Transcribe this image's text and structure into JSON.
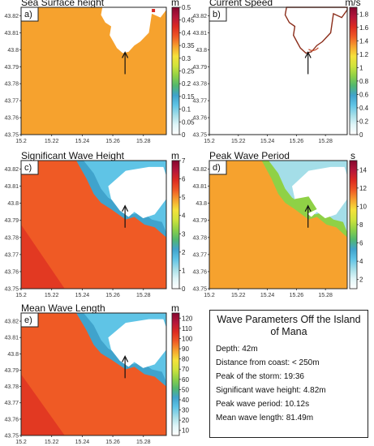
{
  "chart_data": [
    {
      "type": "heatmap",
      "title": "Sea Surface height",
      "panel_label": "a)",
      "unit": "m",
      "colorbar_ticks": [
        "0",
        "0.05",
        "0.1",
        "0.15",
        "0.2",
        "0.25",
        "0.3",
        "0.35",
        "0.4",
        "0.45",
        "0.5"
      ],
      "colorbar_range": [
        0,
        0.5
      ],
      "y_ticks": [
        "43.75",
        "43.76",
        "43.77",
        "43.78",
        "43.79",
        "43.8",
        "43.81",
        "43.82"
      ],
      "x_ticks": [
        "15.2",
        "15.22",
        "15.24",
        "15.26",
        "15.28"
      ],
      "ylim": [
        43.75,
        43.825
      ],
      "xlim": [
        15.2,
        15.295
      ],
      "arrow_target": [
        15.268,
        43.799
      ],
      "dominant_value": 0.33,
      "colors": [
        "#ffffff",
        "#e0f6f8",
        "#a4dee8",
        "#5fc4e6",
        "#40a3cc",
        "#52b86e",
        "#8fd146",
        "#cfe33b",
        "#f5e23a",
        "#f6a22e",
        "#ef5a25",
        "#dd2b21",
        "#b5163a",
        "#85072e"
      ]
    },
    {
      "type": "heatmap",
      "title": "Current Speed",
      "panel_label": "b)",
      "unit": "m/s",
      "colorbar_ticks": [
        "0",
        "0.2",
        "0.4",
        "0.6",
        "0.8",
        "1",
        "1.2",
        "1.4",
        "1.6",
        "1.8"
      ],
      "colorbar_range": [
        0,
        1.9
      ],
      "y_ticks": [
        "43.75",
        "43.76",
        "43.77",
        "43.78",
        "43.79",
        "43.8",
        "43.81",
        "43.82"
      ],
      "x_ticks": [
        "15.2",
        "15.22",
        "15.24",
        "15.26",
        "15.28"
      ],
      "ylim": [
        43.75,
        43.825
      ],
      "xlim": [
        15.2,
        15.295
      ],
      "arrow_target": [
        15.268,
        43.799
      ],
      "dominant_value": 0.1,
      "colors": [
        "#ffffff",
        "#e0f6f8",
        "#a4dee8",
        "#5fc4e6",
        "#40a3cc",
        "#52b86e",
        "#8fd146",
        "#cfe33b",
        "#f5e23a",
        "#f6a22e",
        "#ef5a25",
        "#dd2b21",
        "#b5163a",
        "#85072e"
      ]
    },
    {
      "type": "heatmap",
      "title": "Significant Wave Height",
      "panel_label": "c)",
      "unit": "m",
      "colorbar_ticks": [
        "0",
        "1",
        "2",
        "3",
        "4",
        "5",
        "6",
        "7"
      ],
      "colorbar_range": [
        0,
        7
      ],
      "y_ticks": [
        "43.75",
        "43.76",
        "43.77",
        "43.78",
        "43.79",
        "43.8",
        "43.81",
        "43.82"
      ],
      "x_ticks": [
        "15.2",
        "15.22",
        "15.24",
        "15.26",
        "15.28"
      ],
      "ylim": [
        43.75,
        43.825
      ],
      "xlim": [
        15.2,
        15.295
      ],
      "arrow_target": [
        15.268,
        43.799
      ],
      "dominant_value": 5.2,
      "colors": [
        "#ffffff",
        "#e0f6f8",
        "#a4dee8",
        "#5fc4e6",
        "#40a3cc",
        "#52b86e",
        "#8fd146",
        "#cfe33b",
        "#f5e23a",
        "#f6a22e",
        "#ef5a25",
        "#dd2b21",
        "#b5163a",
        "#85072e"
      ]
    },
    {
      "type": "heatmap",
      "title": "Peak Wave Period",
      "panel_label": "d)",
      "unit": "s",
      "colorbar_ticks": [
        "2",
        "4",
        "6",
        "8",
        "10",
        "12",
        "14"
      ],
      "colorbar_range": [
        1,
        15
      ],
      "y_ticks": [
        "43.75",
        "43.76",
        "43.77",
        "43.78",
        "43.79",
        "43.8",
        "43.81",
        "43.82"
      ],
      "x_ticks": [
        "15.2",
        "15.22",
        "15.24",
        "15.26",
        "15.28"
      ],
      "ylim": [
        43.75,
        43.825
      ],
      "xlim": [
        15.2,
        15.295
      ],
      "arrow_target": [
        15.268,
        43.799
      ],
      "dominant_value": 10.5,
      "colors": [
        "#ffffff",
        "#e0f6f8",
        "#a4dee8",
        "#5fc4e6",
        "#40a3cc",
        "#52b86e",
        "#8fd146",
        "#cfe33b",
        "#f5e23a",
        "#f6a22e",
        "#ef5a25",
        "#dd2b21",
        "#b5163a",
        "#85072e"
      ]
    },
    {
      "type": "heatmap",
      "title": "Mean Wave Length",
      "panel_label": "e)",
      "unit": "m",
      "colorbar_ticks": [
        "10",
        "20",
        "30",
        "40",
        "50",
        "60",
        "70",
        "80",
        "90",
        "100",
        "110",
        "120"
      ],
      "colorbar_range": [
        5,
        125
      ],
      "y_ticks": [
        "43.75",
        "43.76",
        "43.77",
        "43.78",
        "43.79",
        "43.8",
        "43.81",
        "43.82"
      ],
      "x_ticks": [
        "15.2",
        "15.22",
        "15.24",
        "15.26",
        "15.28"
      ],
      "ylim": [
        43.75,
        43.825
      ],
      "xlim": [
        15.2,
        15.295
      ],
      "arrow_target": [
        15.268,
        43.799
      ],
      "dominant_value": 92,
      "colors": [
        "#ffffff",
        "#e0f6f8",
        "#a4dee8",
        "#5fc4e6",
        "#40a3cc",
        "#52b86e",
        "#8fd146",
        "#cfe33b",
        "#f5e23a",
        "#f6a22e",
        "#ef5a25",
        "#dd2b21",
        "#b5163a",
        "#85072e"
      ]
    }
  ],
  "info_box": {
    "title": "Wave Parameters Off  the Island of Mana",
    "items": [
      "Depth:  42m",
      "Distance from coast: < 250m",
      "Peak of the storm: 19:36",
      "Significant wave height: 4.82m",
      "Peak wave period: 10.12s",
      "Mean wave length: 81.49m"
    ]
  }
}
